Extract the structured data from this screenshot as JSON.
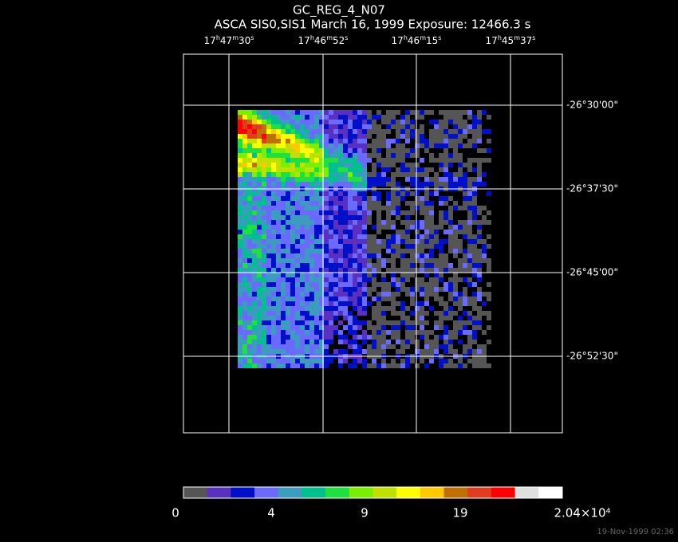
{
  "header": {
    "title": "GC_REG_4_N07",
    "subtitle": "ASCA SIS0,SIS1 March 16, 1999 Exposure: 12466.3 s"
  },
  "ra_ticks": [
    "17h47m30s",
    "17h46m52s",
    "17h46m15s",
    "17h45m37s"
  ],
  "dec_ticks": [
    "-26°30'00\"",
    "-26°37'30\"",
    "-26°45'00\"",
    "-26°52'30\""
  ],
  "colorbar": {
    "colors": [
      "#555555",
      "#5a30c0",
      "#0010c8",
      "#6a6aff",
      "#3c9cc0",
      "#00c090",
      "#20e040",
      "#78f000",
      "#c0e000",
      "#ffff00",
      "#ffc800",
      "#c07000",
      "#e03c1e",
      "#ff0000",
      "#e0e0e0",
      "#ffffff"
    ],
    "labels": [
      "0",
      "4",
      "9",
      "19",
      "2.04×10⁴"
    ]
  },
  "timestamp": "19-Nov-1999 02:36"
}
